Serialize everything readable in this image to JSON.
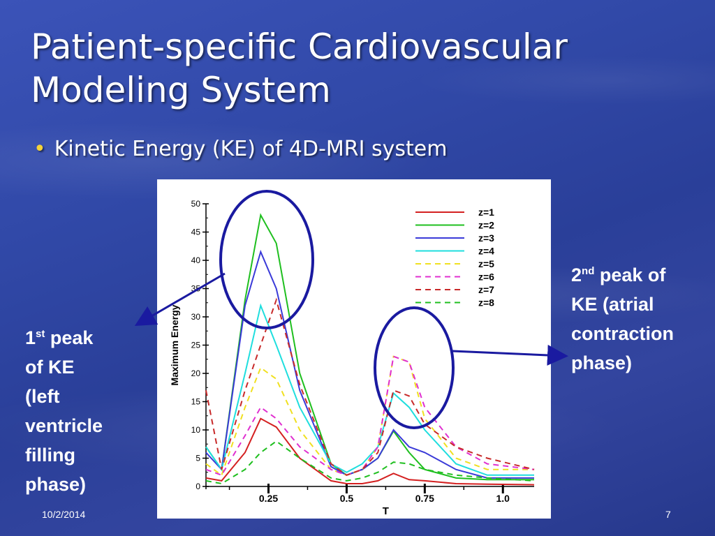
{
  "slide": {
    "title_line1": "Patient-specific Cardiovascular",
    "title_line2": "Modeling System",
    "bullet": "Kinetic Energy (KE) of 4D-MRI system",
    "note_left": {
      "num": "1",
      "sup": "st",
      "line1_rest": " peak",
      "lines": [
        "of KE",
        "(left",
        "ventricle",
        "filling",
        "phase)"
      ]
    },
    "note_right": {
      "num": "2",
      "sup": "nd",
      "line1_rest": " peak of",
      "lines": [
        "KE (atrial",
        "contraction",
        "phase)"
      ]
    },
    "footer_date": "10/2/2014",
    "page_number": "7"
  },
  "chart_data": {
    "type": "line",
    "xlabel": "T",
    "ylabel": "Maximum Energy",
    "xlim": [
      0.05,
      1.1
    ],
    "ylim": [
      0,
      50
    ],
    "yticks": [
      "0",
      "5",
      "10",
      "15",
      "20",
      "25",
      "30",
      "35",
      "40",
      "45",
      "50"
    ],
    "xticks": [
      "0.25",
      "0.5",
      "0.75",
      "1.0"
    ],
    "x": [
      0.05,
      0.1,
      0.175,
      0.225,
      0.275,
      0.35,
      0.45,
      0.5,
      0.55,
      0.6,
      0.65,
      0.7,
      0.75,
      0.85,
      0.95,
      1.1
    ],
    "series": [
      {
        "name": "z=1",
        "color": "#d42020",
        "dash": false,
        "values": [
          1.5,
          1,
          6,
          12,
          10.5,
          5,
          1,
          0.5,
          0.5,
          1,
          2.3,
          1.2,
          1,
          0.5,
          0.4,
          0.3
        ]
      },
      {
        "name": "z=2",
        "color": "#1fbf1f",
        "dash": false,
        "values": [
          7,
          3,
          33,
          48,
          43,
          20,
          4,
          2,
          3,
          5,
          9.8,
          6,
          3,
          1.5,
          1.2,
          1.2
        ]
      },
      {
        "name": "z=3",
        "color": "#3a3ad8",
        "dash": false,
        "values": [
          6,
          3,
          32,
          41.5,
          35,
          17,
          3.5,
          2,
          3,
          5,
          10,
          7,
          6,
          3,
          1.5,
          1.5
        ]
      },
      {
        "name": "z=4",
        "color": "#1fdede",
        "dash": false,
        "values": [
          7,
          3,
          20,
          32,
          25,
          14,
          4,
          2.5,
          4,
          7,
          16.5,
          14,
          10,
          4,
          2,
          2
        ]
      },
      {
        "name": "z=5",
        "color": "#f0e020",
        "dash": true,
        "values": [
          4,
          2,
          14,
          21,
          19,
          10,
          3,
          2,
          3,
          7,
          23,
          22,
          12,
          5,
          3,
          3
        ]
      },
      {
        "name": "z=6",
        "color": "#e030d0",
        "dash": true,
        "values": [
          3,
          2,
          9,
          14,
          12,
          7,
          3,
          2,
          3,
          7,
          23,
          22,
          14,
          7,
          4,
          3
        ]
      },
      {
        "name": "z=7",
        "color": "#c82a2a",
        "dash": true,
        "values": [
          17,
          3,
          17,
          25,
          33,
          18,
          4,
          2,
          3,
          6,
          17,
          16,
          11,
          7,
          5,
          3
        ]
      },
      {
        "name": "z=8",
        "color": "#1fbf1f",
        "dash": true,
        "values": [
          1,
          0.5,
          3,
          6,
          8,
          5,
          1.5,
          1,
          1.5,
          2.5,
          4.3,
          4,
          3,
          2,
          1.5,
          1
        ]
      }
    ]
  }
}
